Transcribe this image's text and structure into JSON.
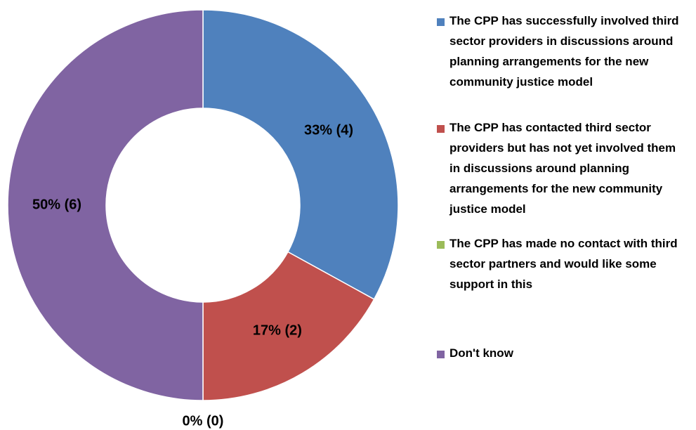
{
  "chart_data": {
    "type": "donut",
    "categories": [
      "The CPP has successfully involved third sector providers in discussions around planning arrangements for the new community justice model",
      "The CPP has contacted third sector providers but has not yet involved them in discussions around planning arrangements for the new community justice model",
      "The CPP has made no contact with third sector partners and would like some support in this",
      "Don't know"
    ],
    "values": [
      33,
      17,
      0,
      50
    ],
    "value_labels": [
      "33% (4)",
      "17% (2)",
      "0% (0)",
      "50% (6)"
    ],
    "colors": [
      "#4f81bd",
      "#c0504d",
      "#9bbb59",
      "#8064a2"
    ],
    "legend": "right"
  }
}
